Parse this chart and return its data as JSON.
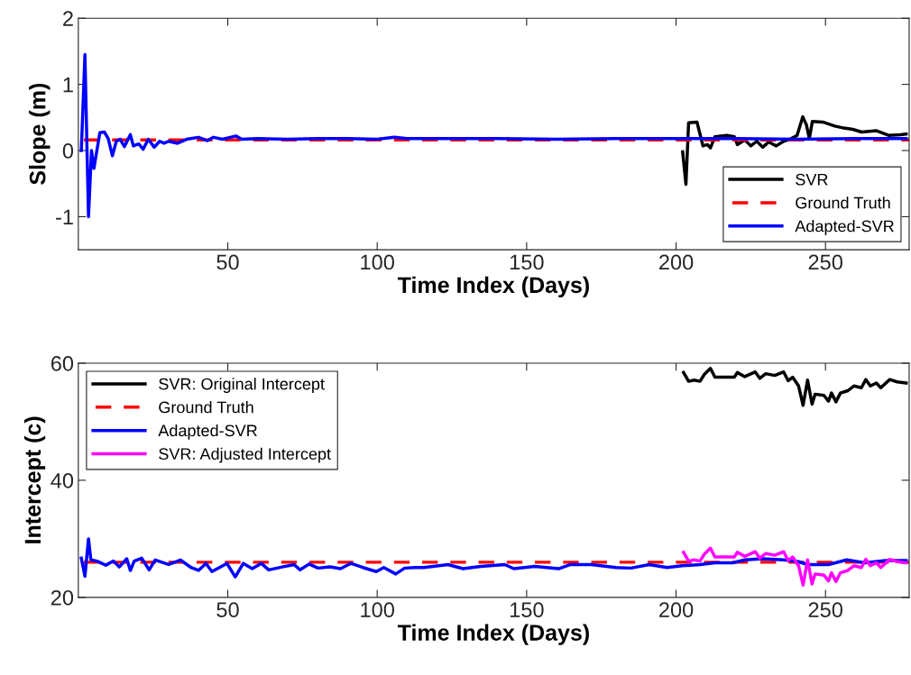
{
  "chart_data": [
    {
      "type": "line",
      "xlabel": "Time Index (Days)",
      "ylabel": "Slope (m)",
      "xlim": [
        0,
        278
      ],
      "xticks": [
        50,
        100,
        150,
        200,
        250
      ],
      "ylim": [
        -1.5,
        2
      ],
      "yticks": [
        -1,
        0,
        1,
        2
      ],
      "grid": false,
      "legend": "bottom right",
      "series": [
        {
          "name": "SVR",
          "color": "#000000",
          "line_style": "solid",
          "x": [
            202.2,
            203.3,
            204.2,
            207,
            209,
            210.5,
            211.5,
            213,
            217,
            219.5,
            220.5,
            223,
            225,
            227,
            229,
            231,
            233.5,
            236,
            238.5,
            240.5,
            242.4,
            243.6,
            244.6,
            245.6,
            249.1,
            253.1,
            256.1,
            259.1,
            262.1,
            267.1,
            271.1,
            275.1,
            277
          ],
          "values": [
            -0.02,
            -0.51,
            0.42,
            0.43,
            0.07,
            0.09,
            0.04,
            0.21,
            0.23,
            0.21,
            0.09,
            0.16,
            0.07,
            0.14,
            0.05,
            0.13,
            0.07,
            0.14,
            0.18,
            0.23,
            0.51,
            0.39,
            0.18,
            0.44,
            0.43,
            0.37,
            0.34,
            0.32,
            0.28,
            0.3,
            0.23,
            0.24,
            0.25
          ]
        },
        {
          "name": "Ground Truth",
          "color": "#ff0000",
          "line_style": "dashed",
          "x": [
            1,
            278
          ],
          "values": [
            0.16,
            0.16
          ]
        },
        {
          "name": "Adapted-SVR",
          "color": "#0000ff",
          "line_style": "solid",
          "x": [
            1,
            2.2,
            3.4,
            4.4,
            5.2,
            7.2,
            8.7,
            10,
            11.4,
            12.7,
            14,
            15.4,
            17.4,
            18.4,
            20.2,
            21.7,
            23.4,
            25.4,
            27.2,
            28.7,
            30.2,
            33.2,
            36.2,
            40.2,
            43.2,
            45.2,
            48.2,
            52.7,
            54.7,
            60,
            70,
            80,
            90,
            100,
            105.7,
            110,
            120,
            140,
            160,
            180,
            200,
            220,
            240,
            260,
            277
          ],
          "values": [
            0,
            1.45,
            -1.0,
            0.0,
            -0.27,
            0.27,
            0.28,
            0.18,
            -0.08,
            0.14,
            0.17,
            0.06,
            0.24,
            0.07,
            0.1,
            0.02,
            0.17,
            0.05,
            0.14,
            0.11,
            0.14,
            0.11,
            0.17,
            0.2,
            0.15,
            0.2,
            0.17,
            0.22,
            0.17,
            0.18,
            0.17,
            0.18,
            0.18,
            0.17,
            0.2,
            0.18,
            0.18,
            0.18,
            0.17,
            0.18,
            0.18,
            0.18,
            0.17,
            0.18,
            0.18
          ]
        }
      ]
    },
    {
      "type": "line",
      "xlabel": "Time Index (Days)",
      "ylabel": "Intercept (c)",
      "xlim": [
        0,
        278
      ],
      "xticks": [
        50,
        100,
        150,
        200,
        250
      ],
      "ylim": [
        20,
        60
      ],
      "yticks": [
        20,
        40,
        60
      ],
      "grid": false,
      "legend": "top left",
      "series": [
        {
          "name": "SVR: Original Intercept",
          "color": "#000000",
          "line_style": "solid",
          "x": [
            202.5,
            204.2,
            206,
            208,
            209.5,
            211.5,
            213,
            217,
            219.5,
            220.5,
            223,
            226.5,
            228,
            230,
            233,
            236,
            237.5,
            239,
            241,
            242.5,
            244,
            245.5,
            246.5,
            249.5,
            251,
            252,
            253.5,
            255,
            257.5,
            259.5,
            262,
            263.5,
            265,
            267,
            268.5,
            271.5,
            274,
            277
          ],
          "values": [
            58.4,
            56.9,
            57.1,
            56.9,
            58.1,
            59.1,
            57.6,
            57.6,
            57.6,
            58.4,
            57.7,
            58.5,
            57.4,
            58.2,
            57.9,
            58.5,
            57.0,
            57.6,
            56.1,
            52.8,
            57.1,
            53.0,
            54.7,
            54.5,
            53.5,
            54.9,
            53.4,
            54.9,
            55.3,
            56.1,
            55.8,
            57.2,
            56.1,
            56.6,
            55.8,
            57.2,
            56.8,
            56.6
          ]
        },
        {
          "name": "Ground Truth",
          "color": "#ff0000",
          "line_style": "dashed",
          "x": [
            1,
            278
          ],
          "values": [
            26,
            26
          ]
        },
        {
          "name": "Adapted-SVR",
          "color": "#0000ff",
          "line_style": "solid",
          "x": [
            1,
            2.2,
            3.4,
            4.2,
            6.2,
            9.2,
            11.7,
            13.7,
            16.2,
            17.4,
            18.7,
            21.2,
            23.7,
            25.7,
            30.2,
            34.2,
            37.7,
            40.2,
            42.7,
            44.7,
            47.2,
            49.7,
            52.5,
            55.2,
            58.2,
            61.2,
            63.7,
            68.2,
            72.2,
            74.2,
            77.2,
            80.2,
            84.2,
            87.7,
            91.2,
            95.2,
            99.7,
            102.2,
            106.2,
            109.2,
            112.6,
            115.6,
            123.7,
            128.7,
            134.7,
            142.7,
            145.7,
            152.7,
            160.7,
            164.7,
            171.7,
            179.9,
            184.9,
            191,
            197,
            202,
            208,
            213,
            219,
            223,
            229,
            236,
            241,
            244,
            251,
            257.1,
            263.1,
            270.1,
            277
          ],
          "values": [
            26.7,
            23.6,
            30.0,
            26.4,
            26.2,
            25.5,
            26.2,
            25.2,
            26.6,
            24.6,
            26.2,
            26.7,
            24.7,
            26.4,
            25.6,
            26.4,
            25.1,
            24.6,
            25.8,
            24.4,
            25.1,
            25.8,
            23.5,
            25.8,
            24.9,
            25.8,
            24.7,
            25.2,
            25.6,
            24.7,
            25.7,
            25.0,
            25.2,
            24.9,
            25.8,
            25.1,
            24.4,
            25.1,
            24.0,
            25.0,
            25.1,
            25.1,
            25.6,
            24.9,
            25.3,
            25.6,
            24.9,
            25.3,
            24.9,
            25.6,
            25.6,
            25.1,
            25.0,
            25.6,
            25.1,
            25.4,
            25.6,
            25.9,
            25.9,
            26.4,
            26.6,
            26.4,
            26.1,
            25.6,
            25.6,
            26.4,
            25.9,
            26.3,
            26.3
          ]
        },
        {
          "name": "SVR: Adjusted Intercept",
          "color": "#ff00ff",
          "line_style": "solid",
          "x": [
            202.5,
            204.2,
            206,
            208,
            209.5,
            211.5,
            213,
            217,
            219.5,
            220.5,
            223,
            226.5,
            228,
            230,
            233,
            236,
            237.5,
            239,
            241,
            242.5,
            244,
            245.5,
            246.5,
            249.5,
            251,
            252,
            253.5,
            255,
            257.5,
            259.5,
            262,
            263.5,
            265,
            267,
            268.5,
            271.5,
            274,
            277
          ],
          "values": [
            27.7,
            26.2,
            26.4,
            26.2,
            27.4,
            28.4,
            26.9,
            26.9,
            26.9,
            27.7,
            27.0,
            27.8,
            26.7,
            27.5,
            27.2,
            27.8,
            26.3,
            26.9,
            25.4,
            22.1,
            26.4,
            22.3,
            24.0,
            23.8,
            22.8,
            24.2,
            22.7,
            24.2,
            24.6,
            25.4,
            25.1,
            26.5,
            25.4,
            25.9,
            25.1,
            26.5,
            26.1,
            25.9
          ]
        }
      ]
    }
  ]
}
